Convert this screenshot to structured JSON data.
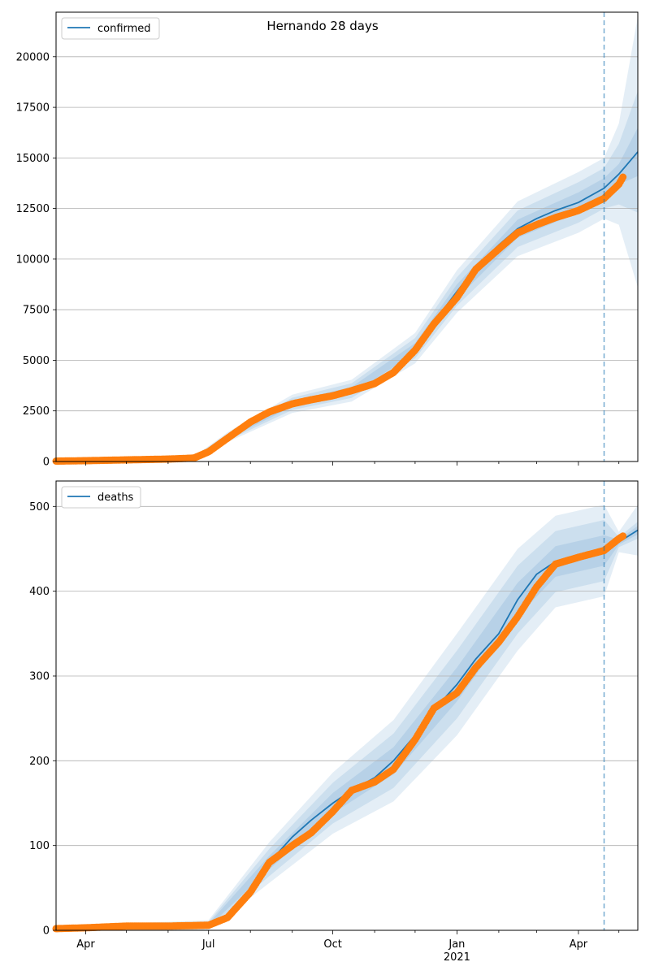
{
  "figure": {
    "title": "Hernando 28 days"
  },
  "chart_data": [
    {
      "type": "line",
      "title": "Hernando 28 days",
      "legend": {
        "label": "confirmed",
        "position": "top-left"
      },
      "yticks": [
        0,
        2500,
        5000,
        7500,
        10000,
        12500,
        15000,
        17500,
        20000
      ],
      "ylim": [
        0,
        22200
      ],
      "xlim": [
        "2020-03-10",
        "2021-05-15"
      ],
      "grid": "y",
      "forecast_start": "2021-04-20",
      "colors": {
        "line": "#1f77b4",
        "observed": "#ff7f0e",
        "band": "#1f77b4",
        "vline": "#1f77b4"
      },
      "series": [
        {
          "name": "confirmed",
          "x": [
            "2020-03-10",
            "2020-04-01",
            "2020-05-01",
            "2020-06-01",
            "2020-06-20",
            "2020-07-01",
            "2020-07-15",
            "2020-08-01",
            "2020-08-15",
            "2020-09-01",
            "2020-09-15",
            "2020-10-01",
            "2020-10-15",
            "2020-11-01",
            "2020-11-15",
            "2020-12-01",
            "2020-12-15",
            "2021-01-01",
            "2021-01-15",
            "2021-02-01",
            "2021-02-15",
            "2021-03-01",
            "2021-03-15",
            "2021-04-01",
            "2021-04-20",
            "2021-05-01",
            "2021-05-15"
          ],
          "y": [
            20,
            40,
            80,
            120,
            170,
            500,
            1200,
            1950,
            2450,
            2850,
            3050,
            3250,
            3500,
            3900,
            4500,
            5600,
            6900,
            8400,
            9600,
            10700,
            11500,
            12000,
            12400,
            12800,
            13500,
            14200,
            15300
          ]
        }
      ],
      "observed": {
        "name": "confirmed observed",
        "x": [
          "2020-03-10",
          "2020-04-01",
          "2020-05-01",
          "2020-06-01",
          "2020-06-20",
          "2020-07-01",
          "2020-07-15",
          "2020-08-01",
          "2020-08-15",
          "2020-09-01",
          "2020-09-15",
          "2020-10-01",
          "2020-10-15",
          "2020-11-01",
          "2020-11-15",
          "2020-12-01",
          "2020-12-15",
          "2021-01-01",
          "2021-01-15",
          "2021-02-01",
          "2021-02-15",
          "2021-03-01",
          "2021-03-15",
          "2021-04-01",
          "2021-04-20",
          "2021-05-01",
          "2021-05-04"
        ],
        "y": [
          20,
          40,
          80,
          120,
          170,
          480,
          1150,
          1950,
          2450,
          2850,
          3050,
          3250,
          3500,
          3850,
          4400,
          5500,
          6800,
          8100,
          9500,
          10500,
          11300,
          11700,
          12050,
          12400,
          13000,
          13700,
          14050
        ]
      },
      "bands": {
        "x": [
          "2020-03-10",
          "2020-06-20",
          "2020-07-15",
          "2020-09-01",
          "2020-10-15",
          "2020-12-01",
          "2021-01-01",
          "2021-02-15",
          "2021-04-01",
          "2021-04-20",
          "2021-05-01",
          "2021-05-15"
        ],
        "mid": [
          20,
          170,
          1200,
          2850,
          3500,
          5600,
          8400,
          11500,
          12800,
          13500,
          14200,
          15300
        ],
        "inner": [
          0,
          20,
          80,
          150,
          180,
          250,
          350,
          450,
          500,
          500,
          500,
          1200
        ],
        "middle": [
          0,
          40,
          160,
          300,
          360,
          500,
          700,
          900,
          1000,
          1000,
          1500,
          3000
        ],
        "outer": [
          0,
          60,
          240,
          450,
          540,
          750,
          1050,
          1350,
          1500,
          1500,
          2500,
          6700
        ]
      }
    },
    {
      "type": "line",
      "legend": {
        "label": "deaths",
        "position": "top-left"
      },
      "xtick_labels": [
        "Apr",
        "Jul",
        "Oct",
        "Jan",
        "Apr"
      ],
      "xtick_year": "2021",
      "yticks": [
        0,
        100,
        200,
        300,
        400,
        500
      ],
      "ylim": [
        0,
        530
      ],
      "xlim": [
        "2020-03-10",
        "2021-05-15"
      ],
      "grid": "y",
      "forecast_start": "2021-04-20",
      "colors": {
        "line": "#1f77b4",
        "observed": "#ff7f0e",
        "band": "#1f77b4",
        "vline": "#1f77b4"
      },
      "series": [
        {
          "name": "deaths",
          "x": [
            "2020-03-10",
            "2020-04-01",
            "2020-05-01",
            "2020-06-01",
            "2020-07-01",
            "2020-07-15",
            "2020-08-01",
            "2020-08-15",
            "2020-09-01",
            "2020-09-15",
            "2020-10-01",
            "2020-10-15",
            "2020-11-01",
            "2020-11-15",
            "2020-12-01",
            "2020-12-15",
            "2021-01-01",
            "2021-01-15",
            "2021-02-01",
            "2021-02-15",
            "2021-03-01",
            "2021-03-15",
            "2021-04-01",
            "2021-04-20",
            "2021-05-01",
            "2021-05-15"
          ],
          "y": [
            2,
            3,
            5,
            5,
            6,
            15,
            45,
            80,
            110,
            130,
            150,
            165,
            180,
            200,
            230,
            260,
            290,
            320,
            350,
            390,
            420,
            435,
            442,
            448,
            458,
            472
          ]
        }
      ],
      "observed": {
        "name": "deaths observed",
        "x": [
          "2020-03-10",
          "2020-04-01",
          "2020-05-01",
          "2020-06-01",
          "2020-07-01",
          "2020-07-15",
          "2020-08-01",
          "2020-08-15",
          "2020-09-01",
          "2020-09-15",
          "2020-10-01",
          "2020-10-15",
          "2020-11-01",
          "2020-11-15",
          "2020-12-01",
          "2020-12-15",
          "2021-01-01",
          "2021-01-15",
          "2021-02-01",
          "2021-02-15",
          "2021-03-01",
          "2021-03-15",
          "2021-04-01",
          "2021-04-20",
          "2021-05-01",
          "2021-05-04"
        ],
        "y": [
          2,
          3,
          5,
          5,
          6,
          15,
          45,
          80,
          100,
          115,
          140,
          165,
          175,
          190,
          225,
          262,
          280,
          310,
          340,
          370,
          405,
          432,
          440,
          448,
          462,
          465
        ]
      },
      "bands": {
        "x": [
          "2020-03-10",
          "2020-07-01",
          "2020-08-15",
          "2020-10-01",
          "2020-11-15",
          "2021-01-01",
          "2021-02-15",
          "2021-03-15",
          "2021-04-20",
          "2021-05-01",
          "2021-05-15"
        ],
        "mid": [
          2,
          6,
          80,
          150,
          200,
          290,
          390,
          435,
          448,
          458,
          472
        ],
        "inner": [
          1,
          2,
          8,
          12,
          16,
          20,
          20,
          18,
          18,
          3,
          5
        ],
        "middle": [
          2,
          4,
          16,
          24,
          32,
          40,
          40,
          36,
          36,
          6,
          10
        ],
        "outer": [
          3,
          6,
          24,
          36,
          48,
          60,
          60,
          54,
          54,
          12,
          30
        ]
      }
    }
  ]
}
